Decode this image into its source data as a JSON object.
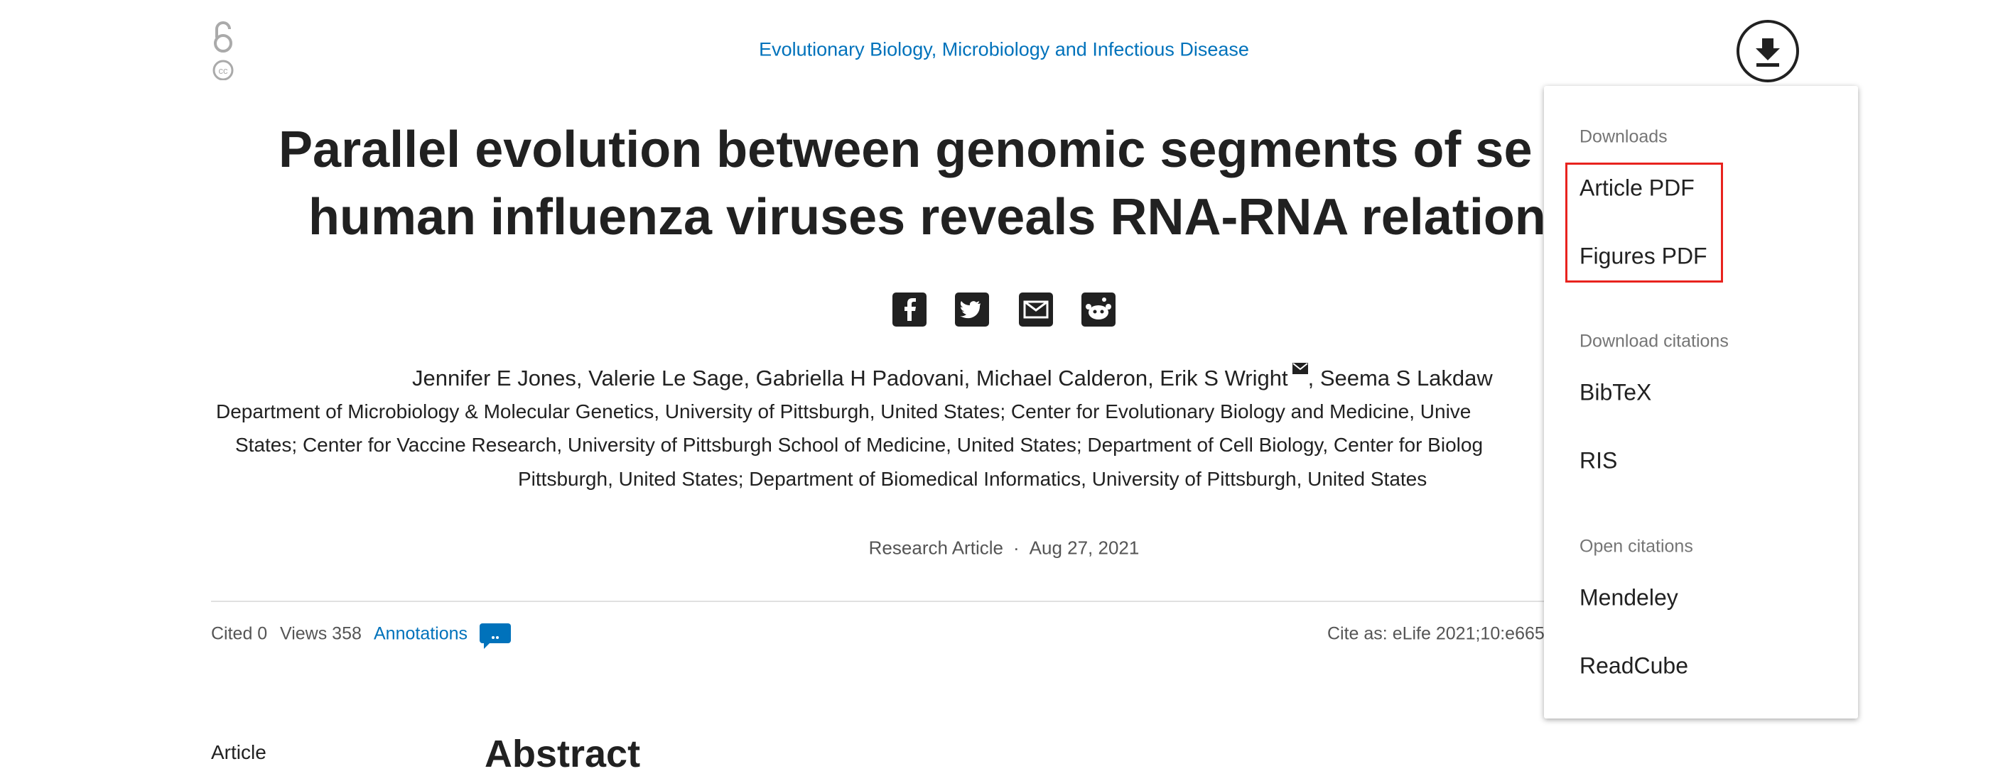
{
  "header": {
    "subject": "Evolutionary Biology, Microbiology and Infectious Disease"
  },
  "title": {
    "lines": [
      "Parallel evolution between genomic segments of se",
      "human influenza viruses reveals RNA-RNA relation"
    ]
  },
  "authors": {
    "before_mail": "Jennifer E Jones, Valerie Le Sage, Gabriella H Padovani, Michael Calderon, Erik S Wright",
    "after_mail": ", Seema S Lakdaw"
  },
  "affiliations": [
    "Department of Microbiology & Molecular Genetics, University of Pittsburgh, United States; Center for Evolutionary Biology and Medicine, Unive",
    "States; Center for Vaccine Research, University of Pittsburgh School of Medicine, United States; Department of Cell Biology, Center for Biolog",
    "Pittsburgh, United States; Department of Biomedical Informatics, University of Pittsburgh, United States"
  ],
  "meta": {
    "type": "Research Article",
    "separator": "·",
    "date": "Aug 27, 2021"
  },
  "stats": {
    "cited": "Cited 0",
    "views": "Views 358",
    "annotations": "Annotations",
    "cite_as": "Cite as: eLife 2021;10:e665"
  },
  "nav": {
    "article": "Article"
  },
  "abstract": {
    "heading": "Abstract"
  },
  "dropdown": {
    "sections": [
      {
        "heading": "Downloads",
        "items": [
          "Article PDF",
          "Figures PDF"
        ]
      },
      {
        "heading": "Download citations",
        "items": [
          "BibTeX",
          "RIS"
        ]
      },
      {
        "heading": "Open citations",
        "items": [
          "Mendeley",
          "ReadCube"
        ]
      }
    ]
  }
}
